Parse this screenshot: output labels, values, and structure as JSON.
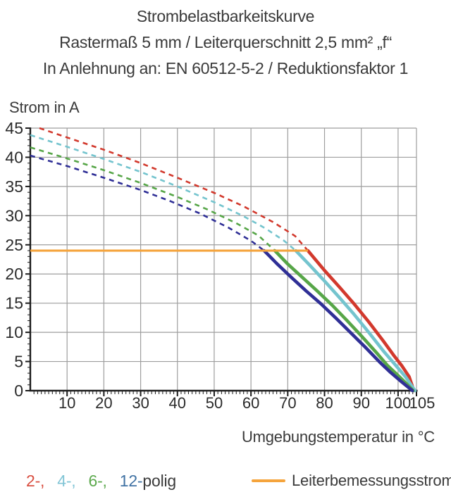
{
  "header": {
    "line1": "Strombelastbarkeitskurve",
    "line2": "Rastermaß 5 mm / Leiterquerschnitt 2,5 mm² „f“",
    "line3": "In Anlehnung an: EN 60512-5-2 / Reduktionsfaktor 1"
  },
  "chart_data": {
    "type": "line",
    "title": "Strombelastbarkeitskurve",
    "ylabel": "Strom in A",
    "xlabel": "Umgebungstemperatur in °C",
    "xlim": [
      0,
      105
    ],
    "ylim": [
      0,
      45
    ],
    "x_major_ticks": [
      10,
      20,
      30,
      40,
      50,
      60,
      70,
      80,
      90,
      100,
      105
    ],
    "y_major_ticks": [
      0,
      5,
      10,
      15,
      20,
      25,
      30,
      35,
      40,
      45
    ],
    "x_minor_step": 1,
    "y_minor_step": 1,
    "grid": true,
    "grid_color": "#9e9e9e",
    "axis_color": "#1c1c1c",
    "series": [
      {
        "name": "2-polig",
        "color": "#d2392d",
        "points_dashed": [
          [
            2.5,
            45
          ],
          [
            10,
            43.4
          ],
          [
            20,
            41.3
          ],
          [
            30,
            39.0
          ],
          [
            40,
            36.5
          ],
          [
            50,
            33.9
          ],
          [
            58,
            31.6
          ],
          [
            66,
            28.9
          ],
          [
            72,
            26.5
          ],
          [
            75.5,
            24
          ]
        ],
        "points_solid": [
          [
            75.5,
            24
          ],
          [
            80,
            20.6
          ],
          [
            84,
            17.8
          ],
          [
            88,
            14.9
          ],
          [
            92,
            11.8
          ],
          [
            96,
            8.5
          ],
          [
            99,
            5.9
          ],
          [
            101,
            4.3
          ],
          [
            103,
            2.4
          ],
          [
            104.3,
            0
          ]
        ]
      },
      {
        "name": "4-polig",
        "color": "#74c4ce",
        "points_dashed": [
          [
            0,
            43.8
          ],
          [
            10,
            41.8
          ],
          [
            20,
            39.7
          ],
          [
            30,
            37.5
          ],
          [
            40,
            35.0
          ],
          [
            50,
            32.3
          ],
          [
            58,
            29.9
          ],
          [
            64,
            27.8
          ],
          [
            69,
            25.7
          ],
          [
            72.2,
            24
          ]
        ],
        "points_solid": [
          [
            72.2,
            24
          ],
          [
            76,
            21.5
          ],
          [
            80,
            18.8
          ],
          [
            84,
            16.0
          ],
          [
            88,
            13.1
          ],
          [
            92,
            10.0
          ],
          [
            96,
            6.8
          ],
          [
            99,
            4.6
          ],
          [
            102,
            2.4
          ],
          [
            104.6,
            0
          ]
        ]
      },
      {
        "name": "6-polig",
        "color": "#57a648",
        "points_dashed": [
          [
            0,
            41.7
          ],
          [
            10,
            39.8
          ],
          [
            20,
            37.8
          ],
          [
            30,
            35.6
          ],
          [
            40,
            33.2
          ],
          [
            48,
            31.1
          ],
          [
            56,
            28.7
          ],
          [
            62,
            26.6
          ],
          [
            66.5,
            24
          ]
        ],
        "points_solid": [
          [
            66.5,
            24
          ],
          [
            70,
            21.7
          ],
          [
            74,
            19.4
          ],
          [
            78,
            17.1
          ],
          [
            82,
            14.7
          ],
          [
            86,
            12.1
          ],
          [
            90,
            9.4
          ],
          [
            94,
            6.6
          ],
          [
            97,
            4.4
          ],
          [
            100,
            2.6
          ],
          [
            102.3,
            1.2
          ],
          [
            104.1,
            0
          ]
        ]
      },
      {
        "name": "12-polig",
        "color": "#2f2f96",
        "points_dashed": [
          [
            0,
            40.3
          ],
          [
            10,
            38.5
          ],
          [
            20,
            36.5
          ],
          [
            30,
            34.4
          ],
          [
            38,
            32.5
          ],
          [
            46,
            30.4
          ],
          [
            54,
            27.9
          ],
          [
            60,
            25.7
          ],
          [
            63.6,
            24
          ]
        ],
        "points_solid": [
          [
            63.6,
            24
          ],
          [
            67,
            21.8
          ],
          [
            71,
            19.4
          ],
          [
            75,
            17.1
          ],
          [
            79,
            14.9
          ],
          [
            83,
            12.5
          ],
          [
            87,
            10.0
          ],
          [
            91,
            7.5
          ],
          [
            95,
            4.9
          ],
          [
            98,
            3.1
          ],
          [
            101,
            1.5
          ],
          [
            103.9,
            0
          ]
        ]
      }
    ],
    "reference_line": {
      "label": "Leiterbemessungsstrom",
      "value": 24,
      "x_start": 0,
      "x_end": 75.5,
      "color": "#f5a43c"
    }
  },
  "legend": {
    "poles": [
      {
        "text": "2-,",
        "color": "#d94f41"
      },
      {
        "text": "4-,",
        "color": "#82c5d6"
      },
      {
        "text": "6-,",
        "color": "#5ca94d"
      },
      {
        "text": "12-",
        "color": "#4173a4",
        "suffix": "polig",
        "suffix_color": "#3b3b3b"
      }
    ],
    "reference_label": "Leiterbemessungsstrom",
    "reference_color": "#f5a43c"
  }
}
